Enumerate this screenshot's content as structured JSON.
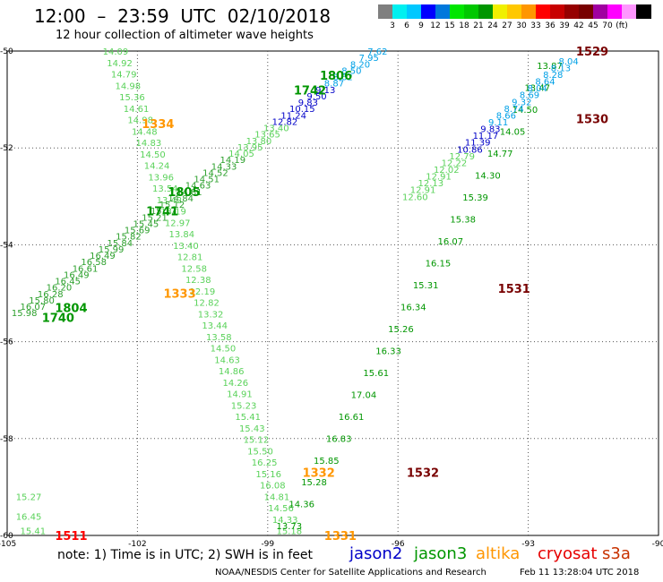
{
  "title": "12:00  –  23:59  UTC  02/10/2018",
  "subtitle": "12 hour collection of altimeter wave heights",
  "colorbar": {
    "colors": [
      "#7f7f7f",
      "#00f0f0",
      "#00c8ff",
      "#0000ff",
      "#0078dc",
      "#00e600",
      "#00c800",
      "#009600",
      "#f0f000",
      "#ffc800",
      "#ff9600",
      "#ff0000",
      "#c80000",
      "#960000",
      "#780000",
      "#a000a0",
      "#ff00ff",
      "#ff96ff",
      "#000000"
    ],
    "labels": [
      "3",
      "6",
      "9",
      "12",
      "15",
      "18",
      "21",
      "24",
      "27",
      "30",
      "33",
      "36",
      "39",
      "42",
      "45",
      "70",
      "(ft)"
    ]
  },
  "axes": {
    "lon_ticks": [
      {
        "lon": -105,
        "label": "-105"
      },
      {
        "lon": -102,
        "label": "-102"
      },
      {
        "lon": -99,
        "label": "-99"
      },
      {
        "lon": -96,
        "label": "-96"
      },
      {
        "lon": -93,
        "label": "-93"
      },
      {
        "lon": -90,
        "label": "-90"
      }
    ],
    "lat_ticks": [
      {
        "lat": -50,
        "label": "-50"
      },
      {
        "lat": -52,
        "label": "-52"
      },
      {
        "lat": -54,
        "label": "-54"
      },
      {
        "lat": -56,
        "label": "-56"
      },
      {
        "lat": -58,
        "label": "-58"
      },
      {
        "lat": -60,
        "label": "-60"
      }
    ]
  },
  "tracks": [
    {
      "name": "altika-descending",
      "color": "#5ad25a",
      "lon1": -102.8,
      "lat1": -50.0,
      "lon2": -98.8,
      "lat2": -59.9,
      "values": [
        "14.09",
        "14.92",
        "14.79",
        "14.98",
        "15.36",
        "14.61",
        "14.98",
        "14.48",
        "14.83",
        "14.50",
        "14.24",
        "13.96",
        "13.54",
        "13.42",
        "13.19",
        "12.97",
        "13.84",
        "13.40",
        "12.81",
        "12.58",
        "12.38",
        "12.19",
        "12.82",
        "13.32",
        "13.44",
        "13.58",
        "14.50",
        "14.63",
        "14.86",
        "14.26",
        "14.91",
        "15.23",
        "15.41",
        "15.43",
        "15.12",
        "15.50",
        "16.25",
        "15.16",
        "16.08",
        "14.81",
        "14.56",
        "14.33",
        "15.18"
      ]
    },
    {
      "name": "jason3-descending",
      "color": "#009600",
      "lon1": -92.8,
      "lat1": -50.3,
      "lon2": -98.8,
      "lat2": -59.8,
      "values": [
        "13.87",
        "13.47",
        "14.50",
        "14.05",
        "14.77",
        "14.30",
        "15.39",
        "15.38",
        "16.07",
        "16.15",
        "15.31",
        "16.34",
        "15.26",
        "16.33",
        "15.61",
        "17.04",
        "16.61",
        "16.83",
        "15.85",
        "15.28",
        "14.36",
        "13.73"
      ]
    },
    {
      "name": "jason2-descending",
      "color": "#0000c8",
      "lon1": -92.3,
      "lat1": -50.2,
      "lon2": -95.9,
      "lat2": -53.0,
      "values": [
        "8.04",
        "8.13",
        "8.28",
        "8.64",
        "8.04",
        "8.69",
        "9.32",
        "8.74",
        "8.66",
        "9.11",
        "9.83",
        "11.17",
        "11.39",
        "10.86",
        "12.79",
        "12.22",
        "12.02",
        "12.91",
        "12.13",
        "12.91",
        "12.60"
      ]
    },
    {
      "name": "cryosat-ascending",
      "color": "#1e8c1e",
      "lon1": -104.9,
      "lat1": -55.4,
      "lon2": -96.7,
      "lat2": -50.0,
      "values": [
        "15.98",
        "16.07",
        "15.80",
        "16.28",
        "16.20",
        "16.45",
        "16.49",
        "16.61",
        "16.58",
        "16.49",
        "15.99",
        "15.84",
        "15.82",
        "15.69",
        "15.45",
        "15.21",
        "15.17",
        "15.12",
        "14.84",
        "14.81",
        "14.63",
        "14.51",
        "14.52",
        "14.33",
        "14.19",
        "14.05",
        "13.95",
        "13.80",
        "13.65",
        "13.40",
        "12.82",
        "11.24",
        "10.15",
        "9.83",
        "9.50",
        "9.13",
        "8.87",
        "8.62",
        "8.50",
        "8.20",
        "7.95",
        "7.62"
      ]
    }
  ],
  "track_colors_second": {
    "upper_part": "#0000c8",
    "light": "#00a0e6"
  },
  "time_labels": [
    {
      "text": "1529",
      "color": "#780000",
      "lon": -91.9,
      "lat": -50.0
    },
    {
      "text": "1530",
      "color": "#780000",
      "lon": -91.9,
      "lat": -51.4
    },
    {
      "text": "1531",
      "color": "#780000",
      "lon": -93.7,
      "lat": -54.9
    },
    {
      "text": "1532",
      "color": "#780000",
      "lon": -95.8,
      "lat": -58.7
    },
    {
      "text": "1334",
      "color": "#ff9600",
      "lon": -101.9,
      "lat": -51.5
    },
    {
      "text": "1333",
      "color": "#ff9600",
      "lon": -101.4,
      "lat": -55.0
    },
    {
      "text": "1332",
      "color": "#ff9600",
      "lon": -98.2,
      "lat": -58.7
    },
    {
      "text": "1331",
      "color": "#ff9600",
      "lon": -97.7,
      "lat": -60.0
    },
    {
      "text": "1806",
      "color": "#009600",
      "lon": -97.8,
      "lat": -50.5
    },
    {
      "text": "1742",
      "color": "#009600",
      "lon": -98.4,
      "lat": -50.8
    },
    {
      "text": "1805",
      "color": "#009600",
      "lon": -101.3,
      "lat": -52.9
    },
    {
      "text": "1741",
      "color": "#009600",
      "lon": -101.8,
      "lat": -53.3
    },
    {
      "text": "1804",
      "color": "#009600",
      "lon": -103.9,
      "lat": -55.3
    },
    {
      "text": "1740",
      "color": "#009600",
      "lon": -104.2,
      "lat": -55.5
    },
    {
      "text": "1511",
      "color": "#ff0000",
      "lon": -103.9,
      "lat": -60.0
    }
  ],
  "corner_values": [
    {
      "text": "15.27",
      "color": "#5ad25a",
      "lon": -104.8,
      "lat": -59.2
    },
    {
      "text": "16.45",
      "color": "#5ad25a",
      "lon": -104.8,
      "lat": -59.6
    },
    {
      "text": "15.41",
      "color": "#5ad25a",
      "lon": -104.7,
      "lat": -59.9
    }
  ],
  "note": "note:  1) Time is in UTC;  2) SWH is in feet",
  "legend": [
    {
      "label": "jason2",
      "color": "#0000c8"
    },
    {
      "label": "jason3",
      "color": "#009600"
    },
    {
      "label": "altika",
      "color": "#ff9600"
    },
    {
      "label": "cryosat",
      "color": "#e60000"
    },
    {
      "label": "s3a",
      "color": "#c83200"
    }
  ],
  "credit": "NOAA/NESDIS Center for Satellite Applications and Research",
  "stamp": "Feb 11 13:28:04 UTC 2018"
}
